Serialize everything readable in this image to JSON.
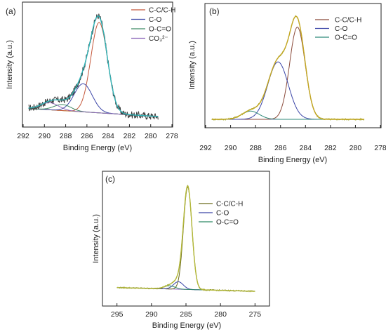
{
  "chart_data": [
    {
      "type": "line",
      "panel_label": "(a)",
      "xlabel": "Binding Energy (eV)",
      "ylabel": "Intensity (a.u.)",
      "xlim": [
        292,
        278
      ],
      "x_ticks": [
        292,
        290,
        288,
        286,
        284,
        282,
        280,
        278
      ],
      "grid": false,
      "legend_position": "top-right",
      "legend": [
        {
          "label": "C-C/C-H",
          "color": "#c4573a"
        },
        {
          "label": "C-O",
          "color": "#3c46a8"
        },
        {
          "label": "O-C=O",
          "color": "#3d8a66"
        },
        {
          "label": "CO₃²⁻",
          "color": "#8a64b8"
        }
      ],
      "colors": {
        "raw": "#3a3a3a",
        "envelope": "#2fb3b6",
        "background": "#a8ad1e"
      },
      "background": {
        "y_low_x": 291.5,
        "y_low": 0.08,
        "y_high_x": 279.3,
        "y_high": 0.0
      },
      "raw_noise": 0.035,
      "series": [
        {
          "name": "C-C/C-H",
          "center": 284.85,
          "height": 0.9,
          "sigma": 0.78
        },
        {
          "name": "C-O",
          "center": 286.35,
          "height": 0.28,
          "sigma": 0.85
        },
        {
          "name": "O-C=O",
          "center": 288.3,
          "height": 0.06,
          "sigma": 0.8
        },
        {
          "name": "CO₃²⁻",
          "center": 289.5,
          "height": 0.07,
          "sigma": 0.85
        }
      ]
    },
    {
      "type": "line",
      "panel_label": "(b)",
      "xlabel": "Binding Energy (eV)",
      "ylabel": "Intensity (a.u.)",
      "xlim": [
        292,
        278
      ],
      "x_ticks": [
        292,
        290,
        288,
        286,
        284,
        282,
        280,
        278
      ],
      "grid": false,
      "legend_position": "top-right",
      "legend": [
        {
          "label": "C-C/C-H",
          "color": "#8a4a3a"
        },
        {
          "label": "C-O",
          "color": "#3c46a8"
        },
        {
          "label": "O-C=O",
          "color": "#2f8a7a"
        }
      ],
      "colors": {
        "raw": "#9aa82a",
        "envelope": "#c3a622",
        "background": "#8a7ac0"
      },
      "background": {
        "y_low_x": 291.5,
        "y_low": 0.0,
        "y_high_x": 279.3,
        "y_high": 0.0
      },
      "raw_noise": 0.008,
      "series": [
        {
          "name": "C-C/C-H",
          "center": 284.65,
          "height": 0.9,
          "sigma": 0.62
        },
        {
          "name": "C-O",
          "center": 286.2,
          "height": 0.56,
          "sigma": 0.82
        },
        {
          "name": "O-C=O",
          "center": 288.4,
          "height": 0.08,
          "sigma": 0.7
        }
      ]
    },
    {
      "type": "line",
      "panel_label": "(c)",
      "xlabel": "Binding Energy (eV)",
      "ylabel": "Intensity (a.u.)",
      "xlim": [
        297,
        273
      ],
      "x_ticks": [
        295,
        290,
        285,
        280,
        275
      ],
      "grid": false,
      "legend_position": "top-right",
      "legend": [
        {
          "label": "C-C/C-H",
          "color": "#6b6a1a"
        },
        {
          "label": "C-O",
          "color": "#3c46a8"
        },
        {
          "label": "O-C=O",
          "color": "#2f8a66"
        }
      ],
      "colors": {
        "raw": "#8a8f1e",
        "envelope": "#b3b83a",
        "background": "#9a6fc6"
      },
      "background": {
        "y_low_x": 295,
        "y_low": 0.035,
        "y_high_x": 275,
        "y_high": 0.0
      },
      "raw_noise": 0.006,
      "series": [
        {
          "name": "C-C/C-H",
          "center": 284.75,
          "height": 0.96,
          "sigma": 0.62
        },
        {
          "name": "C-O",
          "center": 286.1,
          "height": 0.07,
          "sigma": 0.7
        },
        {
          "name": "O-C=O",
          "center": 287.4,
          "height": 0.03,
          "sigma": 0.8
        }
      ]
    }
  ]
}
